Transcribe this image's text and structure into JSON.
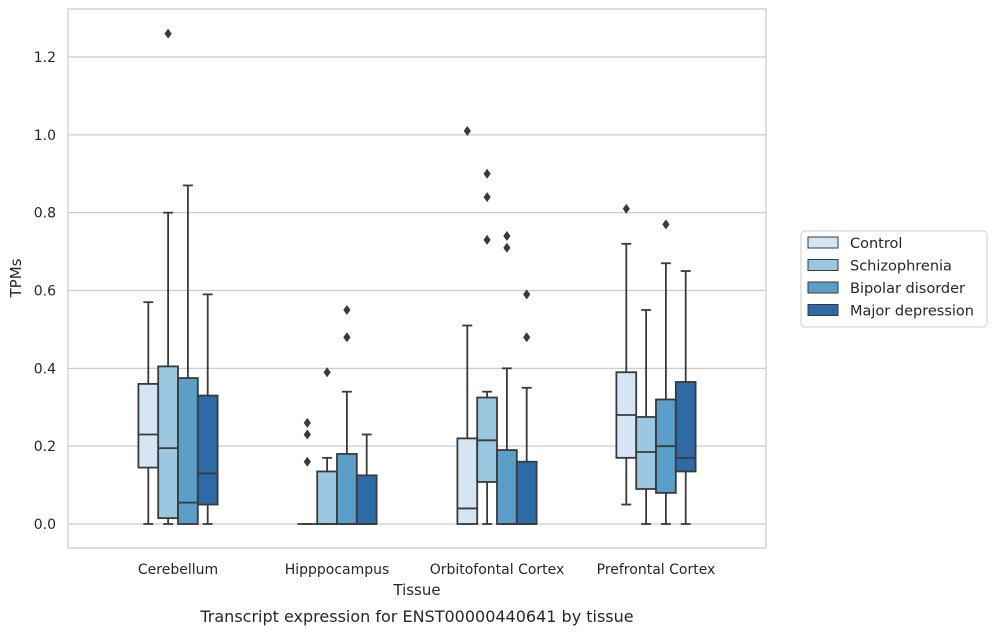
{
  "caption": "Transcript expression for ENST00000440641 by tissue",
  "chart_data": {
    "type": "box",
    "xlabel": "Tissue",
    "ylabel": "TPMs",
    "ylim": [
      -0.06,
      1.32
    ],
    "yticks": [
      "0.0",
      "0.2",
      "0.4",
      "0.6",
      "0.8",
      "1.0",
      "1.2"
    ],
    "grid": true,
    "legend_placement": "right",
    "categories": [
      "Cerebellum",
      "Hipppocampus",
      "Orbitofontal Cortex",
      "Prefrontal Cortex"
    ],
    "series": [
      {
        "name": "Control",
        "color": "#d6e5f4",
        "boxes": [
          {
            "whislo": 0.0,
            "q1": 0.145,
            "med": 0.23,
            "q3": 0.36,
            "whishi": 0.57,
            "fliers": []
          },
          {
            "whislo": 0.0,
            "q1": 0.0,
            "med": 0.0,
            "q3": 0.0,
            "whishi": 0.0,
            "fliers": [
              0.16,
              0.23,
              0.26
            ]
          },
          {
            "whislo": 0.0,
            "q1": 0.0,
            "med": 0.04,
            "q3": 0.22,
            "whishi": 0.51,
            "fliers": [
              1.01
            ]
          },
          {
            "whislo": 0.05,
            "q1": 0.17,
            "med": 0.28,
            "q3": 0.39,
            "whishi": 0.72,
            "fliers": [
              0.81
            ]
          }
        ]
      },
      {
        "name": "Schizophrenia",
        "color": "#9ac8e0",
        "boxes": [
          {
            "whislo": 0.0,
            "q1": 0.015,
            "med": 0.195,
            "q3": 0.405,
            "whishi": 0.8,
            "fliers": [
              1.26
            ]
          },
          {
            "whislo": 0.0,
            "q1": 0.0,
            "med": 0.0,
            "q3": 0.135,
            "whishi": 0.17,
            "fliers": [
              0.39
            ]
          },
          {
            "whislo": 0.0,
            "q1": 0.108,
            "med": 0.215,
            "q3": 0.325,
            "whishi": 0.34,
            "fliers": [
              0.73,
              0.84,
              0.9
            ]
          },
          {
            "whislo": 0.0,
            "q1": 0.09,
            "med": 0.185,
            "q3": 0.275,
            "whishi": 0.55,
            "fliers": []
          }
        ]
      },
      {
        "name": "Bipolar disorder",
        "color": "#5a9ec9",
        "boxes": [
          {
            "whislo": 0.0,
            "q1": 0.0,
            "med": 0.055,
            "q3": 0.375,
            "whishi": 0.87,
            "fliers": []
          },
          {
            "whislo": 0.0,
            "q1": 0.0,
            "med": 0.0,
            "q3": 0.18,
            "whishi": 0.34,
            "fliers": [
              0.48,
              0.55
            ]
          },
          {
            "whislo": 0.0,
            "q1": 0.0,
            "med": 0.0,
            "q3": 0.19,
            "whishi": 0.4,
            "fliers": [
              0.71,
              0.74
            ]
          },
          {
            "whislo": 0.0,
            "q1": 0.08,
            "med": 0.2,
            "q3": 0.32,
            "whishi": 0.67,
            "fliers": [
              0.77
            ]
          }
        ]
      },
      {
        "name": "Major depression",
        "color": "#2d6aa6",
        "boxes": [
          {
            "whislo": 0.0,
            "q1": 0.05,
            "med": 0.13,
            "q3": 0.33,
            "whishi": 0.59,
            "fliers": []
          },
          {
            "whislo": 0.0,
            "q1": 0.0,
            "med": 0.0,
            "q3": 0.125,
            "whishi": 0.23,
            "fliers": []
          },
          {
            "whislo": 0.0,
            "q1": 0.0,
            "med": 0.0,
            "q3": 0.16,
            "whishi": 0.35,
            "fliers": [
              0.48,
              0.59
            ]
          },
          {
            "whislo": 0.0,
            "q1": 0.135,
            "med": 0.17,
            "q3": 0.365,
            "whishi": 0.65,
            "fliers": []
          }
        ]
      }
    ]
  }
}
